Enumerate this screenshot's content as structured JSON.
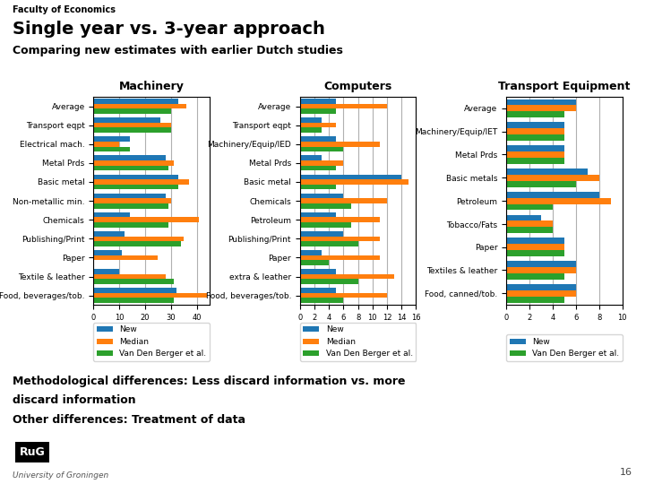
{
  "title": "Single year vs. 3-year approach",
  "subtitle": "Comparing new estimates with earlier Dutch studies",
  "annotations": [
    "Faculty of Economics",
    "Methodological differences: Less discard information vs. more",
    "discard information",
    "Other differences: Treatment of data",
    "RuG",
    "University of Groningen",
    "16"
  ],
  "chart_data": [
    {
      "type": "bar",
      "orientation": "horizontal",
      "title": "Machinery",
      "categories": [
        "Average",
        "Transport eqpt",
        "Electrical mach.",
        "Metal Prds",
        "Basic metal",
        "Non-metallic min.",
        "Chemicals",
        "Publishing/Print",
        "Paper",
        "Textile & leather",
        "Food, beverages/tob."
      ],
      "series": [
        {
          "name": "New",
          "values": [
            33,
            26,
            14,
            28,
            33,
            28,
            14,
            12,
            11,
            10,
            32
          ]
        },
        {
          "name": "Median",
          "values": [
            36,
            30,
            10,
            31,
            37,
            30,
            41,
            35,
            25,
            28,
            44
          ]
        },
        {
          "name": "Van Den Berger et al.",
          "values": [
            30,
            30,
            14,
            29,
            33,
            29,
            29,
            34,
            0,
            31,
            31
          ]
        }
      ],
      "xlim": [
        0,
        45
      ],
      "xticks": [
        0,
        10,
        20,
        30,
        40
      ],
      "grid": true,
      "legend": "lower center"
    },
    {
      "type": "bar",
      "orientation": "horizontal",
      "title": "Computers",
      "categories": [
        "Average",
        "Transport eqpt",
        "Machinery/Equip/IED",
        "Metal Prds",
        "Basic metal",
        "Chemicals",
        "Petroleum",
        "Publishing/Print",
        "Paper",
        "extra & leather",
        "Food, beverages/tob."
      ],
      "series": [
        {
          "name": "New",
          "values": [
            5,
            3,
            5,
            3,
            14,
            6,
            5,
            6,
            3,
            5,
            5
          ]
        },
        {
          "name": "Median",
          "values": [
            12,
            5,
            11,
            6,
            15,
            12,
            11,
            11,
            11,
            13,
            12
          ]
        },
        {
          "name": "Van Den Berger et al.",
          "values": [
            5,
            3,
            6,
            5,
            5,
            7,
            7,
            8,
            4,
            8,
            6
          ]
        }
      ],
      "xlim": [
        0,
        16
      ],
      "xticks": [
        0,
        2,
        4,
        6,
        8,
        10,
        12,
        14,
        16
      ],
      "grid": true,
      "legend": "lower center"
    },
    {
      "type": "bar",
      "orientation": "horizontal",
      "title": "Transport Equipment",
      "categories": [
        "Average",
        "Machinery/Equip/IET",
        "Metal Prds",
        "Basic metals",
        "Petroleum",
        "Tobacco/Fats",
        "Paper",
        "Textiles & leather",
        "Food, canned/tob."
      ],
      "series": [
        {
          "name": "New",
          "values": [
            6,
            5,
            5,
            7,
            8,
            3,
            5,
            6,
            6
          ]
        },
        {
          "name": null,
          "values": [
            6,
            5,
            5,
            8,
            9,
            4,
            5,
            6,
            6
          ]
        },
        {
          "name": "Van Den Berger et al.",
          "values": [
            5,
            5,
            5,
            6,
            4,
            4,
            5,
            5,
            5
          ]
        }
      ],
      "xlim": [
        0,
        10
      ],
      "xticks": [
        0,
        2,
        4,
        6,
        8,
        10
      ],
      "grid": true,
      "legend": "lower center"
    }
  ]
}
